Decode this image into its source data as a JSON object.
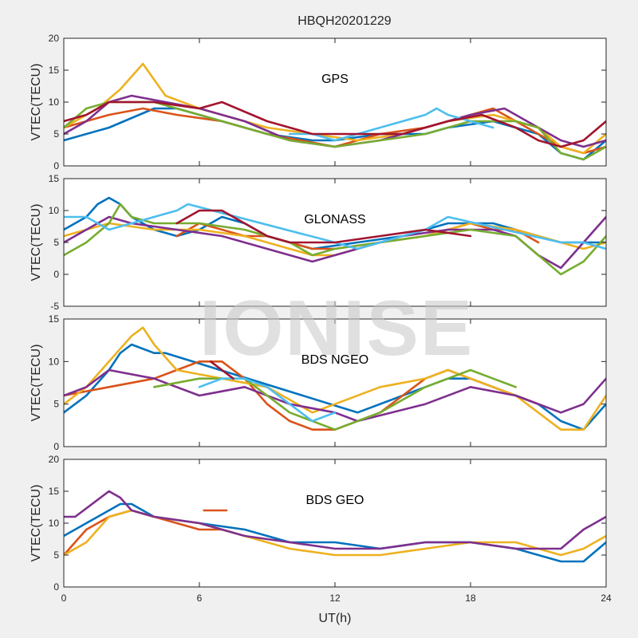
{
  "figure": {
    "title": "HBQH20201229",
    "xlabel": "UT(h)",
    "watermark": "IONISE"
  },
  "colors": {
    "series": [
      "#0072bd",
      "#d95319",
      "#edb120",
      "#7e2f8e",
      "#77ac30",
      "#4dbeee",
      "#a2142f"
    ],
    "axes_bg": "#ffffff",
    "figure_bg": "#f0f0f0"
  },
  "chart_data": [
    {
      "type": "line",
      "panel_label": "GPS",
      "ylabel": "VTEC(TECU)",
      "xlim": [
        0,
        24
      ],
      "ylim": [
        0,
        20
      ],
      "yticks": [
        0,
        5,
        10,
        15,
        20
      ],
      "xticks": [
        0,
        6,
        12,
        18,
        24
      ],
      "show_xtick_labels": false,
      "grid": false,
      "series": [
        {
          "x": [
            0,
            2,
            4,
            5,
            7,
            9,
            11,
            12,
            14,
            16,
            17,
            19,
            21,
            22,
            23,
            24
          ],
          "y": [
            4,
            6,
            9,
            9,
            7,
            5,
            4,
            4,
            5,
            5,
            6,
            7,
            5,
            2,
            1,
            4
          ]
        },
        {
          "x": [
            0,
            2,
            3.5,
            5,
            7,
            9,
            10.5,
            12,
            14,
            16,
            18,
            19,
            20,
            21,
            22,
            23,
            24
          ],
          "y": [
            6,
            8,
            9,
            8,
            7,
            5,
            4,
            3,
            5,
            6,
            8,
            9,
            7,
            5,
            3,
            2,
            3
          ]
        },
        {
          "x": [
            0,
            1.5,
            2.5,
            3,
            3.5,
            4.5,
            6,
            7,
            9,
            11,
            13,
            15,
            17,
            19,
            21,
            22,
            23,
            24
          ],
          "y": [
            6,
            9,
            12,
            14,
            16,
            11,
            9,
            8,
            6,
            5,
            4,
            5,
            7,
            8,
            6,
            3,
            2,
            5
          ]
        },
        {
          "x": [
            0,
            1,
            2,
            3,
            4.5,
            6,
            8,
            10,
            12,
            14,
            16,
            18,
            19.5,
            21,
            22,
            23,
            24
          ],
          "y": [
            5,
            7,
            10,
            11,
            10,
            9,
            7,
            4,
            3,
            4,
            6,
            8,
            9,
            6,
            4,
            3,
            4
          ]
        },
        {
          "x": [
            0,
            1,
            2,
            4,
            6,
            8,
            10,
            12,
            14,
            16,
            18,
            20,
            21,
            22,
            23,
            24
          ],
          "y": [
            6,
            9,
            10,
            10,
            8,
            6,
            4,
            3,
            4,
            5,
            7,
            7,
            6,
            2,
            1,
            3
          ]
        },
        {
          "x": [
            10,
            11,
            12,
            13,
            14,
            15,
            16,
            16.5,
            17,
            18,
            19
          ],
          "y": [
            5,
            5,
            4,
            5,
            6,
            7,
            8,
            9,
            8,
            7,
            6
          ]
        },
        {
          "x": [
            0,
            1,
            2,
            4,
            6,
            7,
            9,
            11,
            13,
            15,
            17,
            18.5,
            20,
            21,
            22,
            23,
            24
          ],
          "y": [
            7,
            8,
            10,
            10,
            9,
            10,
            7,
            5,
            5,
            5,
            7,
            8,
            6,
            4,
            3,
            4,
            7
          ]
        }
      ]
    },
    {
      "type": "line",
      "panel_label": "GLONASS",
      "ylabel": "VTEC(TECU)",
      "xlim": [
        0,
        24
      ],
      "ylim": [
        -5,
        15
      ],
      "yticks": [
        -5,
        0,
        5,
        10,
        15
      ],
      "xticks": [
        0,
        6,
        12,
        18,
        24
      ],
      "show_xtick_labels": false,
      "grid": false,
      "series": [
        {
          "x": [
            0,
            1,
            1.5,
            2,
            2.5,
            3,
            4,
            5,
            6,
            7,
            8,
            9,
            11,
            13,
            15,
            17,
            19,
            21,
            22,
            23,
            24
          ],
          "y": [
            7,
            9,
            11,
            12,
            11,
            9,
            7,
            6,
            7,
            9,
            8,
            6,
            4,
            5,
            6,
            8,
            8,
            6,
            5,
            5,
            5
          ]
        },
        {
          "x": [
            5,
            6,
            7,
            8,
            9,
            10,
            11,
            12,
            14,
            16,
            17,
            18,
            19,
            20,
            21
          ],
          "y": [
            6,
            8,
            7,
            6,
            6,
            5,
            4,
            4,
            5,
            6,
            7,
            8,
            7,
            7,
            5
          ]
        },
        {
          "x": [
            0,
            2,
            4,
            6,
            8,
            10,
            11,
            12,
            14,
            16,
            17,
            18,
            20,
            22,
            23,
            24
          ],
          "y": [
            6,
            8,
            7,
            7,
            6,
            4,
            3,
            3,
            5,
            6,
            7,
            8,
            7,
            5,
            4,
            5
          ]
        },
        {
          "x": [
            0,
            1,
            2,
            3,
            5,
            7,
            9,
            11,
            13,
            15,
            17,
            19,
            20,
            21,
            22,
            23,
            24
          ],
          "y": [
            5,
            7,
            9,
            8,
            7,
            6,
            4,
            2,
            4,
            6,
            7,
            7,
            6,
            3,
            1,
            5,
            9
          ]
        },
        {
          "x": [
            0,
            1,
            2,
            2.5,
            3,
            4,
            6,
            8,
            9,
            10,
            11,
            12,
            14,
            16,
            18,
            20,
            21,
            22,
            23,
            24
          ],
          "y": [
            3,
            5,
            8,
            11,
            9,
            8,
            8,
            7,
            6,
            5,
            3,
            4,
            5,
            6,
            7,
            6,
            3,
            0,
            2,
            6
          ]
        },
        {
          "x": [
            0,
            1,
            2,
            3,
            4,
            5,
            5.5,
            12,
            13,
            14,
            15,
            16,
            17,
            22,
            23,
            24
          ],
          "y": [
            9,
            9,
            7,
            8,
            9,
            10,
            11,
            5,
            4,
            5,
            6,
            7,
            9,
            5,
            5,
            4
          ]
        },
        {
          "x": [
            5,
            6,
            7,
            8,
            9,
            10,
            12,
            14,
            16,
            18
          ],
          "y": [
            8,
            10,
            10,
            8,
            6,
            5,
            5,
            6,
            7,
            6
          ]
        }
      ]
    },
    {
      "type": "line",
      "panel_label": "BDS NGEO",
      "ylabel": "VTEC(TECU)",
      "xlim": [
        0,
        24
      ],
      "ylim": [
        0,
        15
      ],
      "yticks": [
        0,
        5,
        10,
        15
      ],
      "xticks": [
        0,
        6,
        12,
        18,
        24
      ],
      "show_xtick_labels": false,
      "grid": false,
      "series": [
        {
          "x": [
            0,
            1,
            2,
            2.5,
            3,
            4,
            4.5,
            13,
            15,
            17,
            18,
            19,
            20,
            21,
            22,
            23,
            24
          ],
          "y": [
            4,
            6,
            9,
            11,
            12,
            11,
            11,
            4,
            6,
            8,
            8,
            7,
            6,
            5,
            3,
            2,
            5
          ]
        },
        {
          "x": [
            0,
            2,
            4,
            5,
            6,
            7,
            8,
            9,
            10,
            11,
            12,
            13,
            14,
            15,
            16,
            17,
            18,
            19,
            20,
            21
          ],
          "y": [
            6,
            7,
            8,
            9,
            10,
            10,
            8,
            5,
            3,
            2,
            2,
            3,
            4,
            6,
            8,
            9,
            8,
            7,
            6,
            5
          ]
        },
        {
          "x": [
            0,
            1,
            2,
            3,
            3.5,
            4,
            5,
            7,
            9,
            11,
            12,
            14,
            16,
            17,
            18,
            20,
            21,
            22,
            23,
            24
          ],
          "y": [
            5,
            7,
            10,
            13,
            14,
            12,
            9,
            8,
            7,
            4,
            5,
            7,
            8,
            9,
            8,
            6,
            4,
            2,
            2,
            6
          ]
        },
        {
          "x": [
            0,
            1,
            2,
            4,
            6,
            8,
            10,
            12,
            13,
            16,
            18,
            20,
            22,
            23,
            24
          ],
          "y": [
            6,
            7,
            9,
            8,
            6,
            7,
            5,
            4,
            3,
            5,
            7,
            6,
            4,
            5,
            8
          ]
        },
        {
          "x": [
            4,
            6,
            8,
            9,
            10,
            11,
            12,
            13,
            14,
            16,
            18,
            19,
            20
          ],
          "y": [
            7,
            8,
            8,
            6,
            4,
            3,
            2,
            3,
            4,
            7,
            9,
            8,
            7
          ]
        },
        {
          "x": [
            6,
            7,
            8,
            9,
            10,
            11,
            12
          ],
          "y": [
            7,
            8,
            8,
            7,
            5,
            3,
            4
          ]
        },
        {
          "x": [
            6.5,
            7,
            7.5
          ],
          "y": [
            10,
            9,
            8
          ]
        }
      ]
    },
    {
      "type": "line",
      "panel_label": "BDS GEO",
      "ylabel": "VTEC(TECU)",
      "xlim": [
        0,
        24
      ],
      "ylim": [
        0,
        20
      ],
      "yticks": [
        0,
        5,
        10,
        15,
        20
      ],
      "xticks": [
        0,
        6,
        12,
        18,
        24
      ],
      "xticklabels": [
        "0",
        "6",
        "12",
        "18",
        "24"
      ],
      "show_xtick_labels": true,
      "grid": false,
      "series": [
        {
          "x": [
            0,
            1,
            2,
            2.5,
            3,
            4,
            6,
            8,
            10,
            12,
            14,
            16,
            18,
            20,
            21,
            22,
            23,
            24
          ],
          "y": [
            8,
            10,
            12,
            13,
            13,
            11,
            10,
            9,
            7,
            7,
            6,
            7,
            7,
            6,
            5,
            4,
            4,
            7
          ]
        },
        {
          "x": [
            0,
            1,
            2,
            3,
            4,
            5,
            6,
            7,
            6.2,
            7.2
          ],
          "y": [
            5,
            9,
            11,
            12,
            11,
            10,
            9,
            9,
            12,
            12
          ]
        },
        {
          "x": [
            0,
            1,
            2,
            3,
            4,
            6,
            8,
            10,
            12,
            14,
            16,
            18,
            20,
            22,
            23,
            24
          ],
          "y": [
            5,
            7,
            11,
            12,
            11,
            10,
            8,
            6,
            5,
            5,
            6,
            7,
            7,
            5,
            6,
            8
          ]
        },
        {
          "x": [
            0,
            0.5,
            2,
            2.5,
            3,
            4,
            6,
            8,
            10,
            12,
            14,
            16,
            18,
            20,
            22,
            23,
            24
          ],
          "y": [
            11,
            11,
            15,
            14,
            12,
            11,
            10,
            8,
            7,
            6,
            6,
            7,
            7,
            6,
            6,
            9,
            11
          ]
        }
      ]
    }
  ]
}
